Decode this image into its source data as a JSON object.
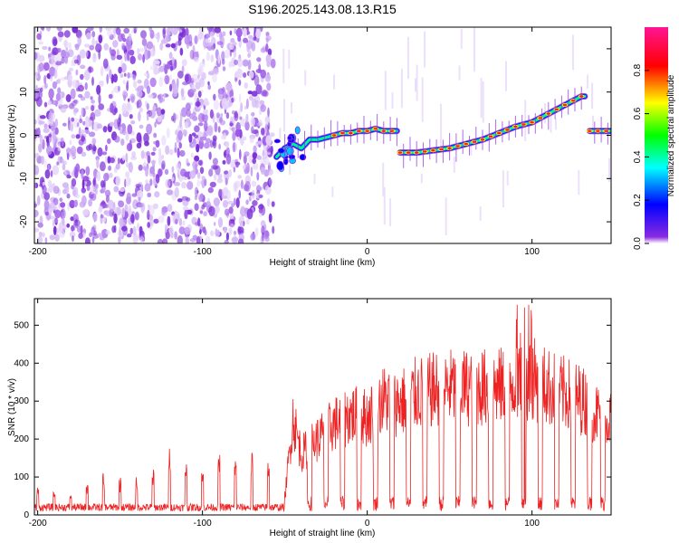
{
  "title": "S196.2025.143.08.13.R15",
  "colors": {
    "trace": "#ee2222",
    "speckle": "#8a2be2",
    "frame": "#000000"
  },
  "chart_data": [
    {
      "type": "heatmap",
      "xlabel": "Height of straight line (km)",
      "ylabel": "Frequency (Hz)",
      "xlim": [
        -202,
        148
      ],
      "ylim": [
        -25,
        25
      ],
      "xticks": [
        -200,
        -100,
        0,
        100
      ],
      "yticks": [
        -20,
        -10,
        0,
        10,
        20
      ],
      "colorbar": {
        "label": "Normalized spectral amplitude",
        "range": [
          0.0,
          1.0
        ],
        "ticks": [
          "0.0",
          "0.2",
          "0.4",
          "0.6",
          "0.8"
        ],
        "tick_values": [
          0.0,
          0.2,
          0.4,
          0.6,
          0.8
        ]
      },
      "noise_region_x": [
        -202,
        -57
      ],
      "ridge": [
        {
          "x": -55,
          "y": -5
        },
        {
          "x": -50,
          "y": -3
        },
        {
          "x": -45,
          "y": -2
        },
        {
          "x": -40,
          "y": -3
        },
        {
          "x": -35,
          "y": -1
        },
        {
          "x": -30,
          "y": -1
        },
        {
          "x": -25,
          "y": -0.5
        },
        {
          "x": -20,
          "y": 0
        },
        {
          "x": -15,
          "y": 0.5
        },
        {
          "x": -10,
          "y": 0.5
        },
        {
          "x": -5,
          "y": 1
        },
        {
          "x": 0,
          "y": 1
        },
        {
          "x": 5,
          "y": 1.5
        },
        {
          "x": 10,
          "y": 1
        },
        {
          "x": 18,
          "y": 1
        },
        {
          "x": 20,
          "y": -4
        },
        {
          "x": 30,
          "y": -4
        },
        {
          "x": 40,
          "y": -3.5
        },
        {
          "x": 50,
          "y": -3
        },
        {
          "x": 60,
          "y": -2
        },
        {
          "x": 70,
          "y": -1
        },
        {
          "x": 80,
          "y": 0.5
        },
        {
          "x": 90,
          "y": 2
        },
        {
          "x": 100,
          "y": 3
        },
        {
          "x": 110,
          "y": 5
        },
        {
          "x": 120,
          "y": 7
        },
        {
          "x": 130,
          "y": 9
        },
        {
          "x": 132,
          "y": 9
        },
        {
          "x": 135,
          "y": 1
        },
        {
          "x": 148,
          "y": 1
        }
      ]
    },
    {
      "type": "line",
      "xlabel": "Height of straight line (km)",
      "ylabel": "SNR (10 * v/v)",
      "xlim": [
        -202,
        148
      ],
      "ylim": [
        0,
        570
      ],
      "xticks": [
        -200,
        -100,
        0,
        100
      ],
      "yticks": [
        0,
        100,
        200,
        300,
        400,
        500
      ],
      "baseline_noise": [
        10,
        30
      ],
      "spikes_x": [
        -200,
        -190,
        -180,
        -170,
        -160,
        -150,
        -140,
        -130,
        -120,
        -110,
        -100,
        -90,
        -80,
        -70,
        -60
      ],
      "spikes_y": [
        80,
        60,
        60,
        90,
        110,
        100,
        100,
        120,
        185,
        140,
        130,
        160,
        150,
        165,
        150
      ],
      "envelope": [
        {
          "x": -202,
          "y": 15
        },
        {
          "x": -60,
          "y": 20
        },
        {
          "x": -50,
          "y": 60
        },
        {
          "x": -45,
          "y": 320
        },
        {
          "x": -40,
          "y": 200
        },
        {
          "x": -30,
          "y": 250
        },
        {
          "x": -20,
          "y": 300
        },
        {
          "x": -10,
          "y": 330
        },
        {
          "x": 0,
          "y": 320
        },
        {
          "x": 10,
          "y": 380
        },
        {
          "x": 20,
          "y": 370
        },
        {
          "x": 30,
          "y": 400
        },
        {
          "x": 40,
          "y": 410
        },
        {
          "x": 50,
          "y": 420
        },
        {
          "x": 60,
          "y": 420
        },
        {
          "x": 70,
          "y": 420
        },
        {
          "x": 80,
          "y": 420
        },
        {
          "x": 90,
          "y": 440
        },
        {
          "x": 100,
          "y": 450
        },
        {
          "x": 110,
          "y": 420
        },
        {
          "x": 120,
          "y": 400
        },
        {
          "x": 130,
          "y": 380
        },
        {
          "x": 140,
          "y": 330
        },
        {
          "x": 148,
          "y": 320
        }
      ],
      "dropouts_x": [
        -35,
        -25,
        -15,
        -5,
        5,
        15,
        25,
        35,
        45,
        55,
        65,
        75,
        85,
        95,
        105,
        115,
        125,
        135,
        143
      ]
    }
  ]
}
